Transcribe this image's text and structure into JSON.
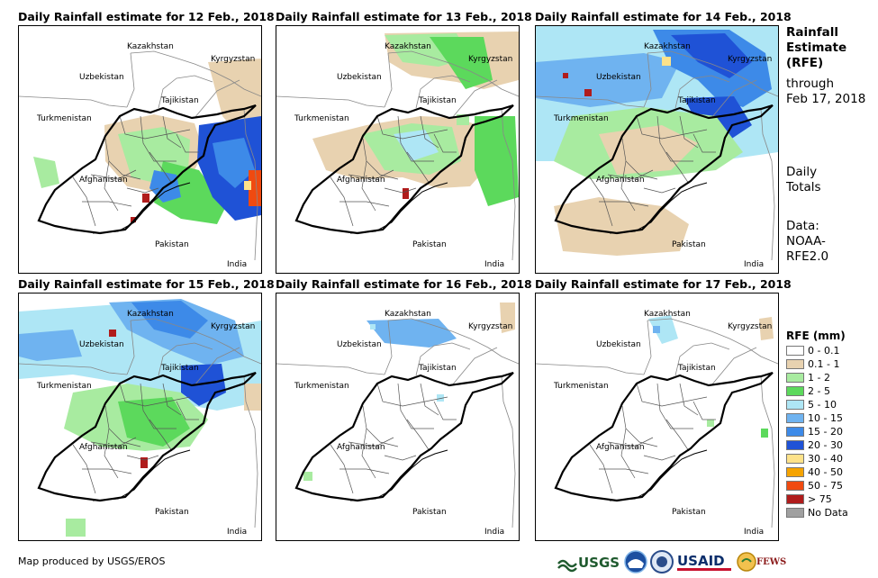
{
  "panels": [
    {
      "title": "Daily Rainfall estimate for 12 Feb., 2018"
    },
    {
      "title": "Daily Rainfall estimate for 13 Feb., 2018"
    },
    {
      "title": "Daily Rainfall estimate for 14 Feb., 2018"
    },
    {
      "title": "Daily Rainfall estimate for 15 Feb., 2018"
    },
    {
      "title": "Daily Rainfall estimate for 16 Feb., 2018"
    },
    {
      "title": "Daily Rainfall estimate for 17 Feb., 2018"
    }
  ],
  "country_labels": {
    "kazakhstan": "Kazakhstan",
    "kyrgyzstan": "Kyrgyzstan",
    "uzbekistan": "Uzbekistan",
    "tajikistan": "Tajikistan",
    "turkmenistan": "Turkmenistan",
    "afghanistan": "Afghanistan",
    "pakistan": "Pakistan",
    "india": "India"
  },
  "side": {
    "title_line1": "Rainfall",
    "title_line2": "Estimate",
    "title_line3": "(RFE)",
    "through": "through",
    "date": "Feb 17, 2018",
    "daily_line1": "Daily",
    "daily_line2": "Totals",
    "data_line1": "Data:",
    "data_line2": "NOAA-",
    "data_line3": "RFE2.0"
  },
  "legend": {
    "title": "RFE (mm)",
    "items": [
      {
        "label": "0 - 0.1",
        "color": "#ffffff"
      },
      {
        "label": "0.1 - 1",
        "color": "#e8d2b0"
      },
      {
        "label": "1 - 2",
        "color": "#a8eba0"
      },
      {
        "label": "2 - 5",
        "color": "#5cd95c"
      },
      {
        "label": "5 - 10",
        "color": "#aee6f5"
      },
      {
        "label": "10 - 15",
        "color": "#6fb3f0"
      },
      {
        "label": "15 - 20",
        "color": "#3d8ae8"
      },
      {
        "label": "20 - 30",
        "color": "#1f52d6"
      },
      {
        "label": "30 - 40",
        "color": "#fde28a"
      },
      {
        "label": "40 - 50",
        "color": "#f5a300"
      },
      {
        "label": "50 - 75",
        "color": "#f04a10"
      },
      {
        "label": "> 75",
        "color": "#b01c1c"
      },
      {
        "label": "No Data",
        "color": "#a0a0a0"
      }
    ]
  },
  "footer": {
    "credit": "Map produced by USGS/EROS",
    "logo_usgs": "USGS",
    "logo_usaid": "USAID",
    "logo_fewsnet": "FEWS NET"
  }
}
